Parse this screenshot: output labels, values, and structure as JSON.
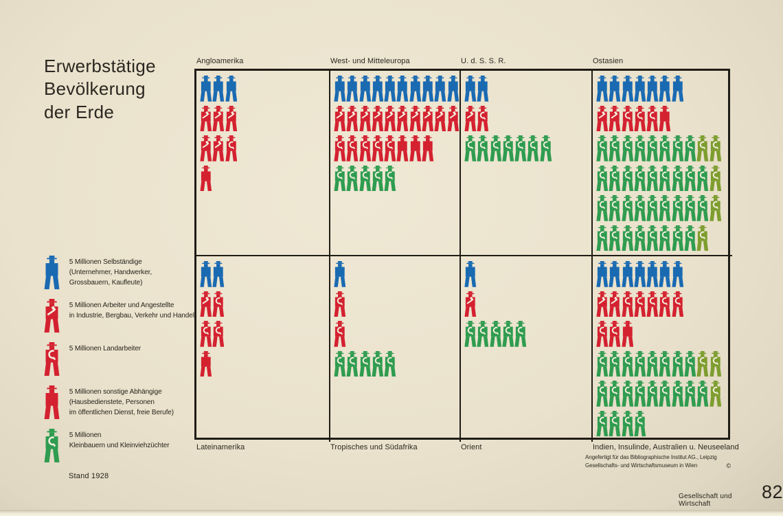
{
  "colors": {
    "paper": "#eae2cc",
    "ink": "#1f1c16",
    "blue": "#1a6ab2",
    "red": "#d42130",
    "green": "#2f9c50",
    "olive": "#7d9d2e",
    "glyph_white": "#f3eedd"
  },
  "title": {
    "lines": [
      "Erwerbstätige",
      "Bevölkerung",
      "der Erde"
    ]
  },
  "legend": {
    "items": [
      {
        "icon": "blue",
        "lines": [
          "5 Millionen Selbständige",
          "(Unternehmer, Handwerker,",
          "Grossbauern, Kaufleute)"
        ]
      },
      {
        "icon": "hammer",
        "lines": [
          "5 Millionen Arbeiter und Angestellte",
          "in Industrie, Bergbau, Verkehr und Handel"
        ]
      },
      {
        "icon": "sickle",
        "lines": [
          "5 Millionen Landarbeiter"
        ]
      },
      {
        "icon": "plain",
        "lines": [
          "5 Millionen sonstige Abhängige",
          "(Hausbedienstete, Personen",
          "im öffentlichen Dienst, freie Berufe)"
        ]
      },
      {
        "icon": "green",
        "lines": [
          "5 Millionen",
          "Kleinbauern und Kleinviehzüchter"
        ]
      }
    ],
    "date_note": "Stand 1928"
  },
  "chart_data": {
    "type": "bar",
    "variant": "isotype-pictogram",
    "title": "Erwerbstätige Bevölkerung der Erde",
    "unit": "1 Figur = 5 Millionen Erwerbstätige",
    "year": "Stand 1928",
    "categories": [
      "Angloamerika",
      "West- und Mitteleuropa",
      "U. d. S. S. R.",
      "Ostasien",
      "Lateinamerika",
      "Tropisches und Südafrika",
      "Orient",
      "Indien, Insulinde, Australien u. Neuseeland"
    ],
    "series": [
      {
        "name": "Selbständige",
        "color": "#1a6ab2",
        "symbol": "blue figure",
        "figure_counts": [
          3,
          10,
          2,
          7,
          2,
          1,
          1,
          7
        ],
        "values_millions": [
          15,
          50,
          10,
          35,
          10,
          5,
          5,
          35
        ]
      },
      {
        "name": "Arbeiter und Angestellte",
        "color": "#d42130",
        "symbol": "red figure with hammer",
        "figure_counts": [
          5,
          10,
          1,
          2,
          1,
          0,
          1,
          2
        ],
        "values_millions": [
          25,
          50,
          5,
          10,
          5,
          0,
          5,
          10
        ]
      },
      {
        "name": "Landarbeiter",
        "color": "#d42130",
        "symbol": "red figure with sickle",
        "figure_counts": [
          1,
          5,
          1,
          3,
          3,
          2,
          0,
          7
        ],
        "values_millions": [
          5,
          25,
          5,
          15,
          15,
          10,
          0,
          35
        ]
      },
      {
        "name": "sonstige Abhängige",
        "color": "#d42130",
        "symbol": "plain red figure",
        "figure_counts": [
          1,
          3,
          0,
          1,
          1,
          0,
          0,
          1
        ],
        "values_millions": [
          5,
          15,
          0,
          5,
          5,
          0,
          0,
          5
        ]
      },
      {
        "name": "Kleinbauern und Kleinviehzüchter",
        "color": "#2f9c50",
        "symbol": "green figure with sickle",
        "figure_counts": [
          0,
          5,
          7,
          39,
          0,
          5,
          5,
          24
        ],
        "values_millions": [
          0,
          25,
          35,
          195,
          0,
          25,
          25,
          120
        ]
      }
    ],
    "legend_position": "left",
    "grid": "2 rows x 4 columns of framed panels"
  },
  "panels": [
    {
      "label": "Angloamerika",
      "label_side": "top",
      "col": 0,
      "row": 0,
      "rows": [
        [
          [
            "blue",
            3
          ]
        ],
        [
          [
            "hammer",
            3
          ]
        ],
        [
          [
            "hammer",
            2
          ],
          [
            "sickle",
            1
          ]
        ],
        [
          [
            "plain",
            1
          ]
        ]
      ]
    },
    {
      "label": "West- und Mitteleuropa",
      "label_side": "top",
      "col": 1,
      "row": 0,
      "rows": [
        [
          [
            "blue",
            10
          ]
        ],
        [
          [
            "hammer",
            10
          ]
        ],
        [
          [
            "sickle",
            5
          ],
          [
            "plain",
            3
          ]
        ],
        [
          [
            "green",
            5
          ]
        ]
      ]
    },
    {
      "label": "U. d. S. S. R.",
      "label_side": "top",
      "col": 2,
      "row": 0,
      "rows": [
        [
          [
            "blue",
            2
          ]
        ],
        [
          [
            "hammer",
            1
          ],
          [
            "sickle",
            1
          ]
        ],
        [
          [
            "green",
            7
          ]
        ]
      ]
    },
    {
      "label": "Ostasien",
      "label_side": "top",
      "col": 3,
      "row": 0,
      "rows": [
        [
          [
            "blue",
            7
          ]
        ],
        [
          [
            "hammer",
            2
          ],
          [
            "sickle",
            3
          ],
          [
            "plain",
            1
          ]
        ],
        [
          [
            "green",
            8
          ],
          [
            "green2",
            2
          ]
        ],
        [
          [
            "green",
            9
          ],
          [
            "green2",
            1
          ]
        ],
        [
          [
            "green",
            9
          ],
          [
            "green2",
            1
          ]
        ],
        [
          [
            "green",
            8
          ],
          [
            "green2",
            1
          ]
        ]
      ]
    },
    {
      "label": "Lateinamerika",
      "label_side": "bottom",
      "col": 0,
      "row": 1,
      "rows": [
        [
          [
            "blue",
            2
          ]
        ],
        [
          [
            "hammer",
            1
          ],
          [
            "sickle",
            1
          ]
        ],
        [
          [
            "sickle",
            2
          ]
        ],
        [
          [
            "plain",
            1
          ]
        ]
      ]
    },
    {
      "label": "Tropisches und Südafrika",
      "label_side": "bottom",
      "col": 1,
      "row": 1,
      "rows": [
        [
          [
            "blue",
            1
          ]
        ],
        [
          [
            "sickle",
            1
          ]
        ],
        [
          [
            "sickle",
            1
          ]
        ],
        [
          [
            "green",
            5
          ]
        ]
      ]
    },
    {
      "label": "Orient",
      "label_side": "bottom",
      "col": 2,
      "row": 1,
      "rows": [
        [
          [
            "blue",
            1
          ]
        ],
        [
          [
            "hammer",
            1
          ]
        ],
        [
          [
            "green",
            5
          ]
        ]
      ]
    },
    {
      "label": "Indien, Insulinde, Australien u. Neuseeland",
      "label_side": "bottom",
      "col": 3,
      "row": 1,
      "rows": [
        [
          [
            "blue",
            7
          ]
        ],
        [
          [
            "hammer",
            2
          ],
          [
            "sickle",
            5
          ]
        ],
        [
          [
            "sickle",
            2
          ],
          [
            "plain",
            1
          ]
        ],
        [
          [
            "green",
            8
          ],
          [
            "green2",
            2
          ]
        ],
        [
          [
            "green",
            9
          ],
          [
            "green2",
            1
          ]
        ],
        [
          [
            "green",
            4
          ]
        ]
      ]
    }
  ],
  "credits": {
    "line1": "Angefertigt für das Bibliographische Institut AG., Leipzig",
    "line2": "Gesellschafts- und Wirtschaftsmuseum in Wien",
    "copyright_symbol": "©"
  },
  "footer": {
    "series": "Gesellschaft und Wirtschaft",
    "page": "82"
  }
}
